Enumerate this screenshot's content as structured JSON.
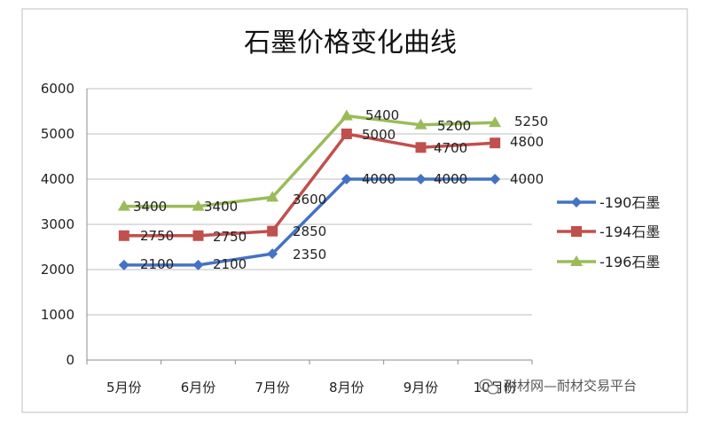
{
  "chart_data": {
    "type": "line",
    "title": "石墨价格变化曲线",
    "categories": [
      "5月份",
      "6月份",
      "7月份",
      "8月份",
      "9月份",
      "10月份"
    ],
    "ylim": [
      0,
      6000
    ],
    "yticks": [
      0,
      1000,
      2000,
      3000,
      4000,
      5000,
      6000
    ],
    "grid": true,
    "legend_position": "right",
    "series": [
      {
        "name": "-190石墨",
        "color": "#4472C4",
        "marker": "diamond",
        "values": [
          2100,
          2100,
          2350,
          4000,
          4000,
          4000
        ]
      },
      {
        "name": "-194石墨",
        "color": "#C0504D",
        "marker": "square",
        "values": [
          2750,
          2750,
          2850,
          5000,
          4700,
          4800
        ]
      },
      {
        "name": "-196石墨",
        "color": "#9BBB59",
        "marker": "triangle",
        "values": [
          3400,
          3400,
          3600,
          5400,
          5200,
          5250
        ]
      }
    ]
  },
  "watermark": {
    "icon": "wechat-icon",
    "text": "耐材网—耐材交易平台"
  }
}
